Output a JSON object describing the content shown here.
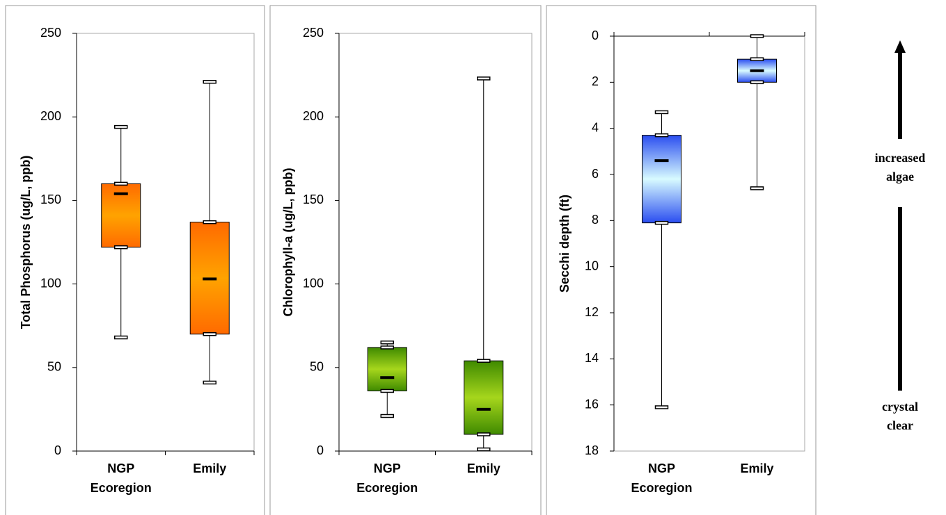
{
  "chart_data": [
    {
      "type": "box",
      "y_label": "Total Phosphorus (ug/L, ppb)",
      "categories": [
        [
          "NGP",
          "Ecoregion"
        ],
        [
          "Emily"
        ]
      ],
      "boxes": [
        {
          "min": 68,
          "q1": 122,
          "median": 154,
          "q3": 160,
          "max": 194
        },
        {
          "min": 41,
          "q1": 70,
          "median": 103,
          "q3": 137,
          "max": 221
        }
      ],
      "colors": [
        "#ff6a00",
        "#ffa300"
      ],
      "ylim": [
        0,
        250
      ],
      "yticks": [
        0,
        50,
        100,
        150,
        200,
        250
      ]
    },
    {
      "type": "box",
      "y_label": "Chlorophyll-a (ug/L, ppb)",
      "categories": [
        [
          "NGP",
          "Ecoregion"
        ],
        [
          "Emily"
        ]
      ],
      "boxes": [
        {
          "min": 21,
          "q1": 36,
          "median": 44,
          "q3": 62,
          "max": 65
        },
        {
          "min": 1,
          "q1": 10,
          "median": 25,
          "q3": 54,
          "max": 223
        }
      ],
      "colors": [
        "#3f8a00",
        "#a6d61c"
      ],
      "ylim": [
        0,
        250
      ],
      "yticks": [
        0,
        50,
        100,
        150,
        200,
        250
      ]
    },
    {
      "type": "box",
      "y_label": "Secchi depth (ft)",
      "categories": [
        [
          "NGP",
          "Ecoregion"
        ],
        [
          "Emily"
        ]
      ],
      "boxes": [
        {
          "min": 3.3,
          "q1": 4.3,
          "median": 5.4,
          "q3": 8.1,
          "max": 16.1
        },
        {
          "min": 0,
          "q1": 1,
          "median": 1.5,
          "q3": 2,
          "max": 6.6
        }
      ],
      "colors": [
        "#2a4df0",
        "#d8fbff"
      ],
      "ylim": [
        0,
        18
      ],
      "yticks": [
        0,
        2,
        4,
        6,
        8,
        10,
        12,
        14,
        16,
        18
      ],
      "y_inverted": true
    }
  ],
  "annotations": {
    "top": [
      "increased",
      "algae"
    ],
    "bottom": [
      "crystal",
      "clear"
    ]
  }
}
